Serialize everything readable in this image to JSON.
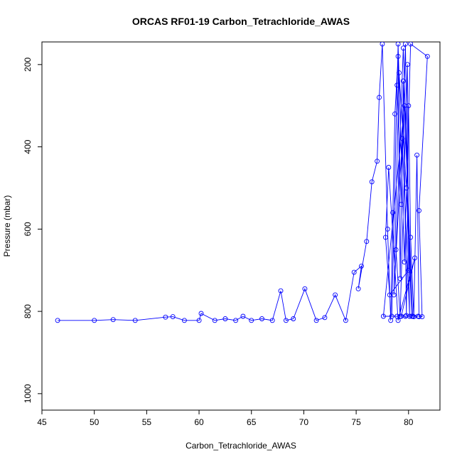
{
  "chart_data": {
    "type": "scatter",
    "title": "ORCAS RF01-19 Carbon_Tetrachloride_AWAS",
    "xlabel": "Carbon_Tetrachloride_AWAS",
    "ylabel": "Pressure (mbar)",
    "xlim": [
      45,
      83
    ],
    "ylim": [
      1040,
      145
    ],
    "y_reversed": true,
    "x_ticks": [
      45,
      50,
      55,
      60,
      65,
      70,
      75,
      80
    ],
    "y_ticks": [
      200,
      400,
      600,
      800,
      1000
    ],
    "grid": false,
    "legend": "none",
    "series_color": "#0000ff",
    "series": [
      {
        "style": "line+circle",
        "points": [
          [
            46.5,
            822
          ],
          [
            50.0,
            822
          ],
          [
            51.8,
            820
          ],
          [
            53.9,
            822
          ],
          [
            56.8,
            814
          ],
          [
            57.5,
            813
          ],
          [
            58.6,
            822
          ],
          [
            60.0,
            822
          ],
          [
            60.2,
            805
          ],
          [
            61.5,
            822
          ],
          [
            62.5,
            818
          ],
          [
            63.5,
            822
          ],
          [
            64.2,
            812
          ],
          [
            65.0,
            822
          ],
          [
            66.0,
            818
          ],
          [
            67.0,
            822
          ],
          [
            67.8,
            750
          ],
          [
            68.3,
            822
          ],
          [
            69.0,
            818
          ],
          [
            70.1,
            745
          ],
          [
            71.2,
            822
          ],
          [
            72.0,
            815
          ],
          [
            73.0,
            760
          ],
          [
            74.0,
            822
          ],
          [
            74.8,
            705
          ],
          [
            75.5,
            690
          ],
          [
            75.2,
            745
          ],
          [
            76.0,
            630
          ],
          [
            76.5,
            485
          ],
          [
            77.0,
            435
          ],
          [
            77.2,
            280
          ],
          [
            77.5,
            150
          ],
          [
            78.0,
            600
          ],
          [
            78.3,
            822
          ],
          [
            78.5,
            560
          ],
          [
            78.7,
            320
          ],
          [
            79.0,
            180
          ],
          [
            79.2,
            720
          ],
          [
            79.5,
            240
          ],
          [
            79.8,
            810
          ],
          [
            80.0,
            300
          ],
          [
            80.2,
            620
          ],
          [
            80.5,
            813
          ],
          [
            80.8,
            420
          ],
          [
            81.0,
            813
          ],
          [
            81.3,
            813
          ],
          [
            81.0,
            555
          ],
          [
            81.8,
            180
          ],
          [
            80.2,
            150
          ],
          [
            79.6,
            680
          ],
          [
            79.0,
            150
          ],
          [
            78.4,
            812
          ],
          [
            78.9,
            250
          ],
          [
            79.3,
            540
          ],
          [
            79.7,
            150
          ],
          [
            80.1,
            812
          ],
          [
            79.4,
            380
          ],
          [
            78.6,
            760
          ],
          [
            79.1,
            220
          ],
          [
            79.8,
            500
          ],
          [
            80.3,
            812
          ],
          [
            79.5,
            160
          ],
          [
            78.8,
            650
          ],
          [
            79.2,
            812
          ],
          [
            79.9,
            200
          ],
          [
            80.0,
            700
          ],
          [
            78.2,
            760
          ],
          [
            77.8,
            620
          ],
          [
            78.1,
            450
          ],
          [
            79.0,
            822
          ],
          [
            80.6,
            670
          ],
          [
            79.3,
            812
          ],
          [
            77.6,
            812
          ],
          [
            79.6,
            300
          ],
          [
            80.4,
            812
          ],
          [
            78.9,
            812
          ],
          [
            79.7,
            812
          ],
          [
            80.9,
            812
          ]
        ]
      }
    ]
  }
}
